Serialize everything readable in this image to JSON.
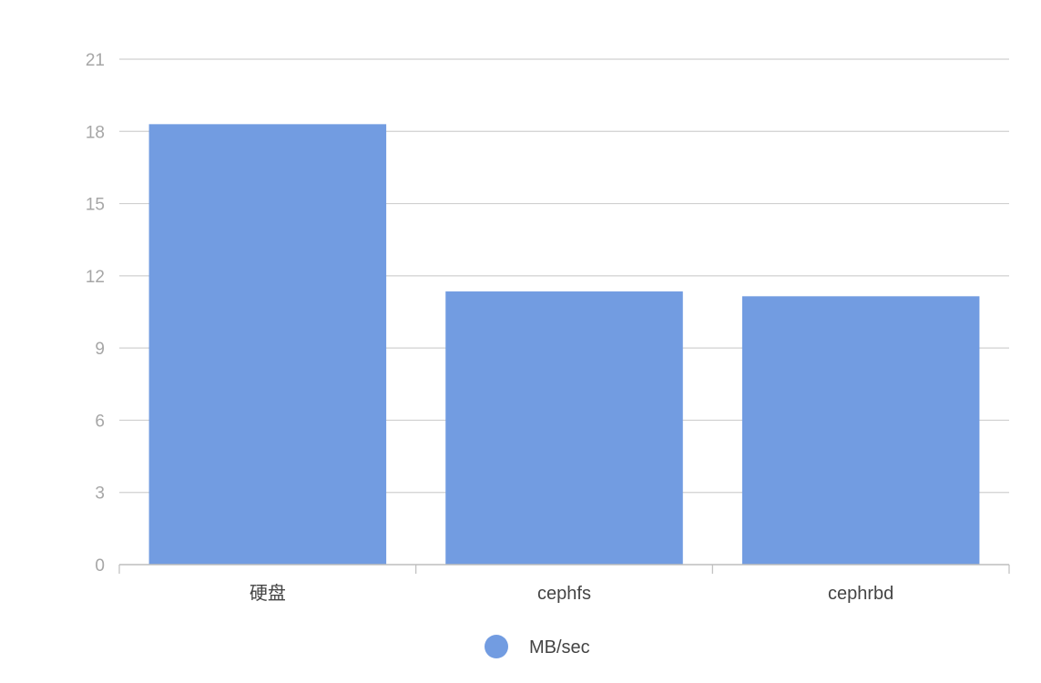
{
  "chart_data": {
    "type": "bar",
    "categories": [
      "硬盘",
      "cephfs",
      "cephrbd"
    ],
    "series": [
      {
        "name": "MB/sec",
        "values": [
          18.3,
          11.35,
          11.15
        ]
      }
    ],
    "ylim": [
      0,
      21
    ],
    "yticks": [
      0,
      3,
      6,
      9,
      12,
      15,
      18,
      21
    ],
    "grid": true,
    "legend_position": "bottom-center",
    "colors": {
      "bar": "#729ce1",
      "grid": "#d0d0d0",
      "axis": "#bdbdbd",
      "tick_label": "#a6a6a6",
      "category_label": "#444444",
      "legend_text": "#444444"
    }
  }
}
